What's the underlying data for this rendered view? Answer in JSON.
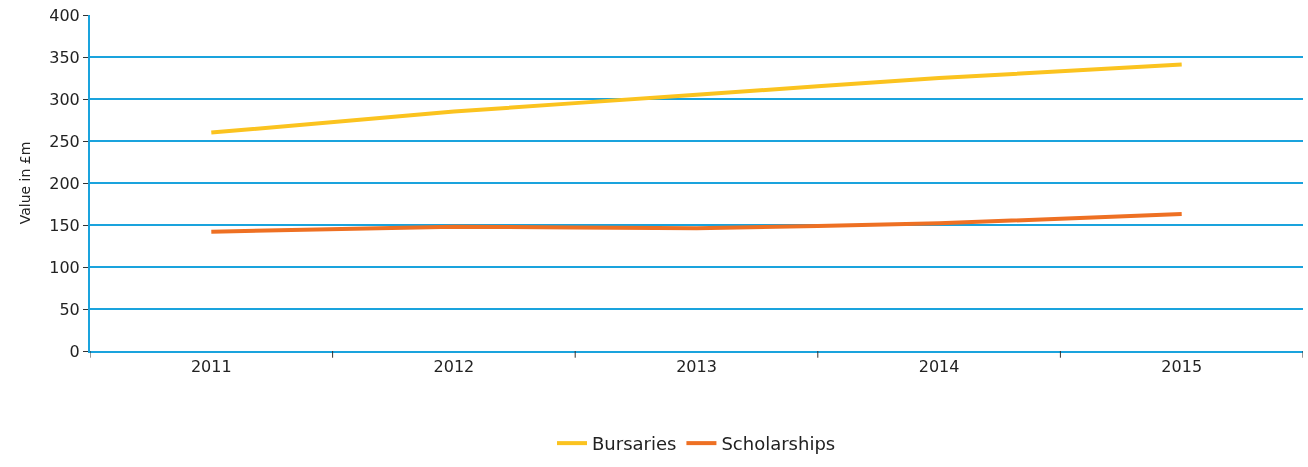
{
  "chart_data": {
    "type": "line",
    "ylabel": "Value in £m",
    "categories": [
      "2011",
      "2012",
      "2013",
      "2014",
      "2015"
    ],
    "series": [
      {
        "name": "Bursaries",
        "color": "#fbc31f",
        "values": [
          260,
          285,
          305,
          325,
          341
        ]
      },
      {
        "name": "Scholarships",
        "color": "#ee7023",
        "values": [
          142,
          148,
          146,
          152,
          163
        ]
      }
    ],
    "ylim": [
      0,
      400
    ],
    "yticks": [
      0,
      50,
      100,
      150,
      200,
      250,
      300,
      350,
      400
    ],
    "grid": "y",
    "legend": "bottom",
    "marker": "none",
    "line_style": "solid"
  }
}
